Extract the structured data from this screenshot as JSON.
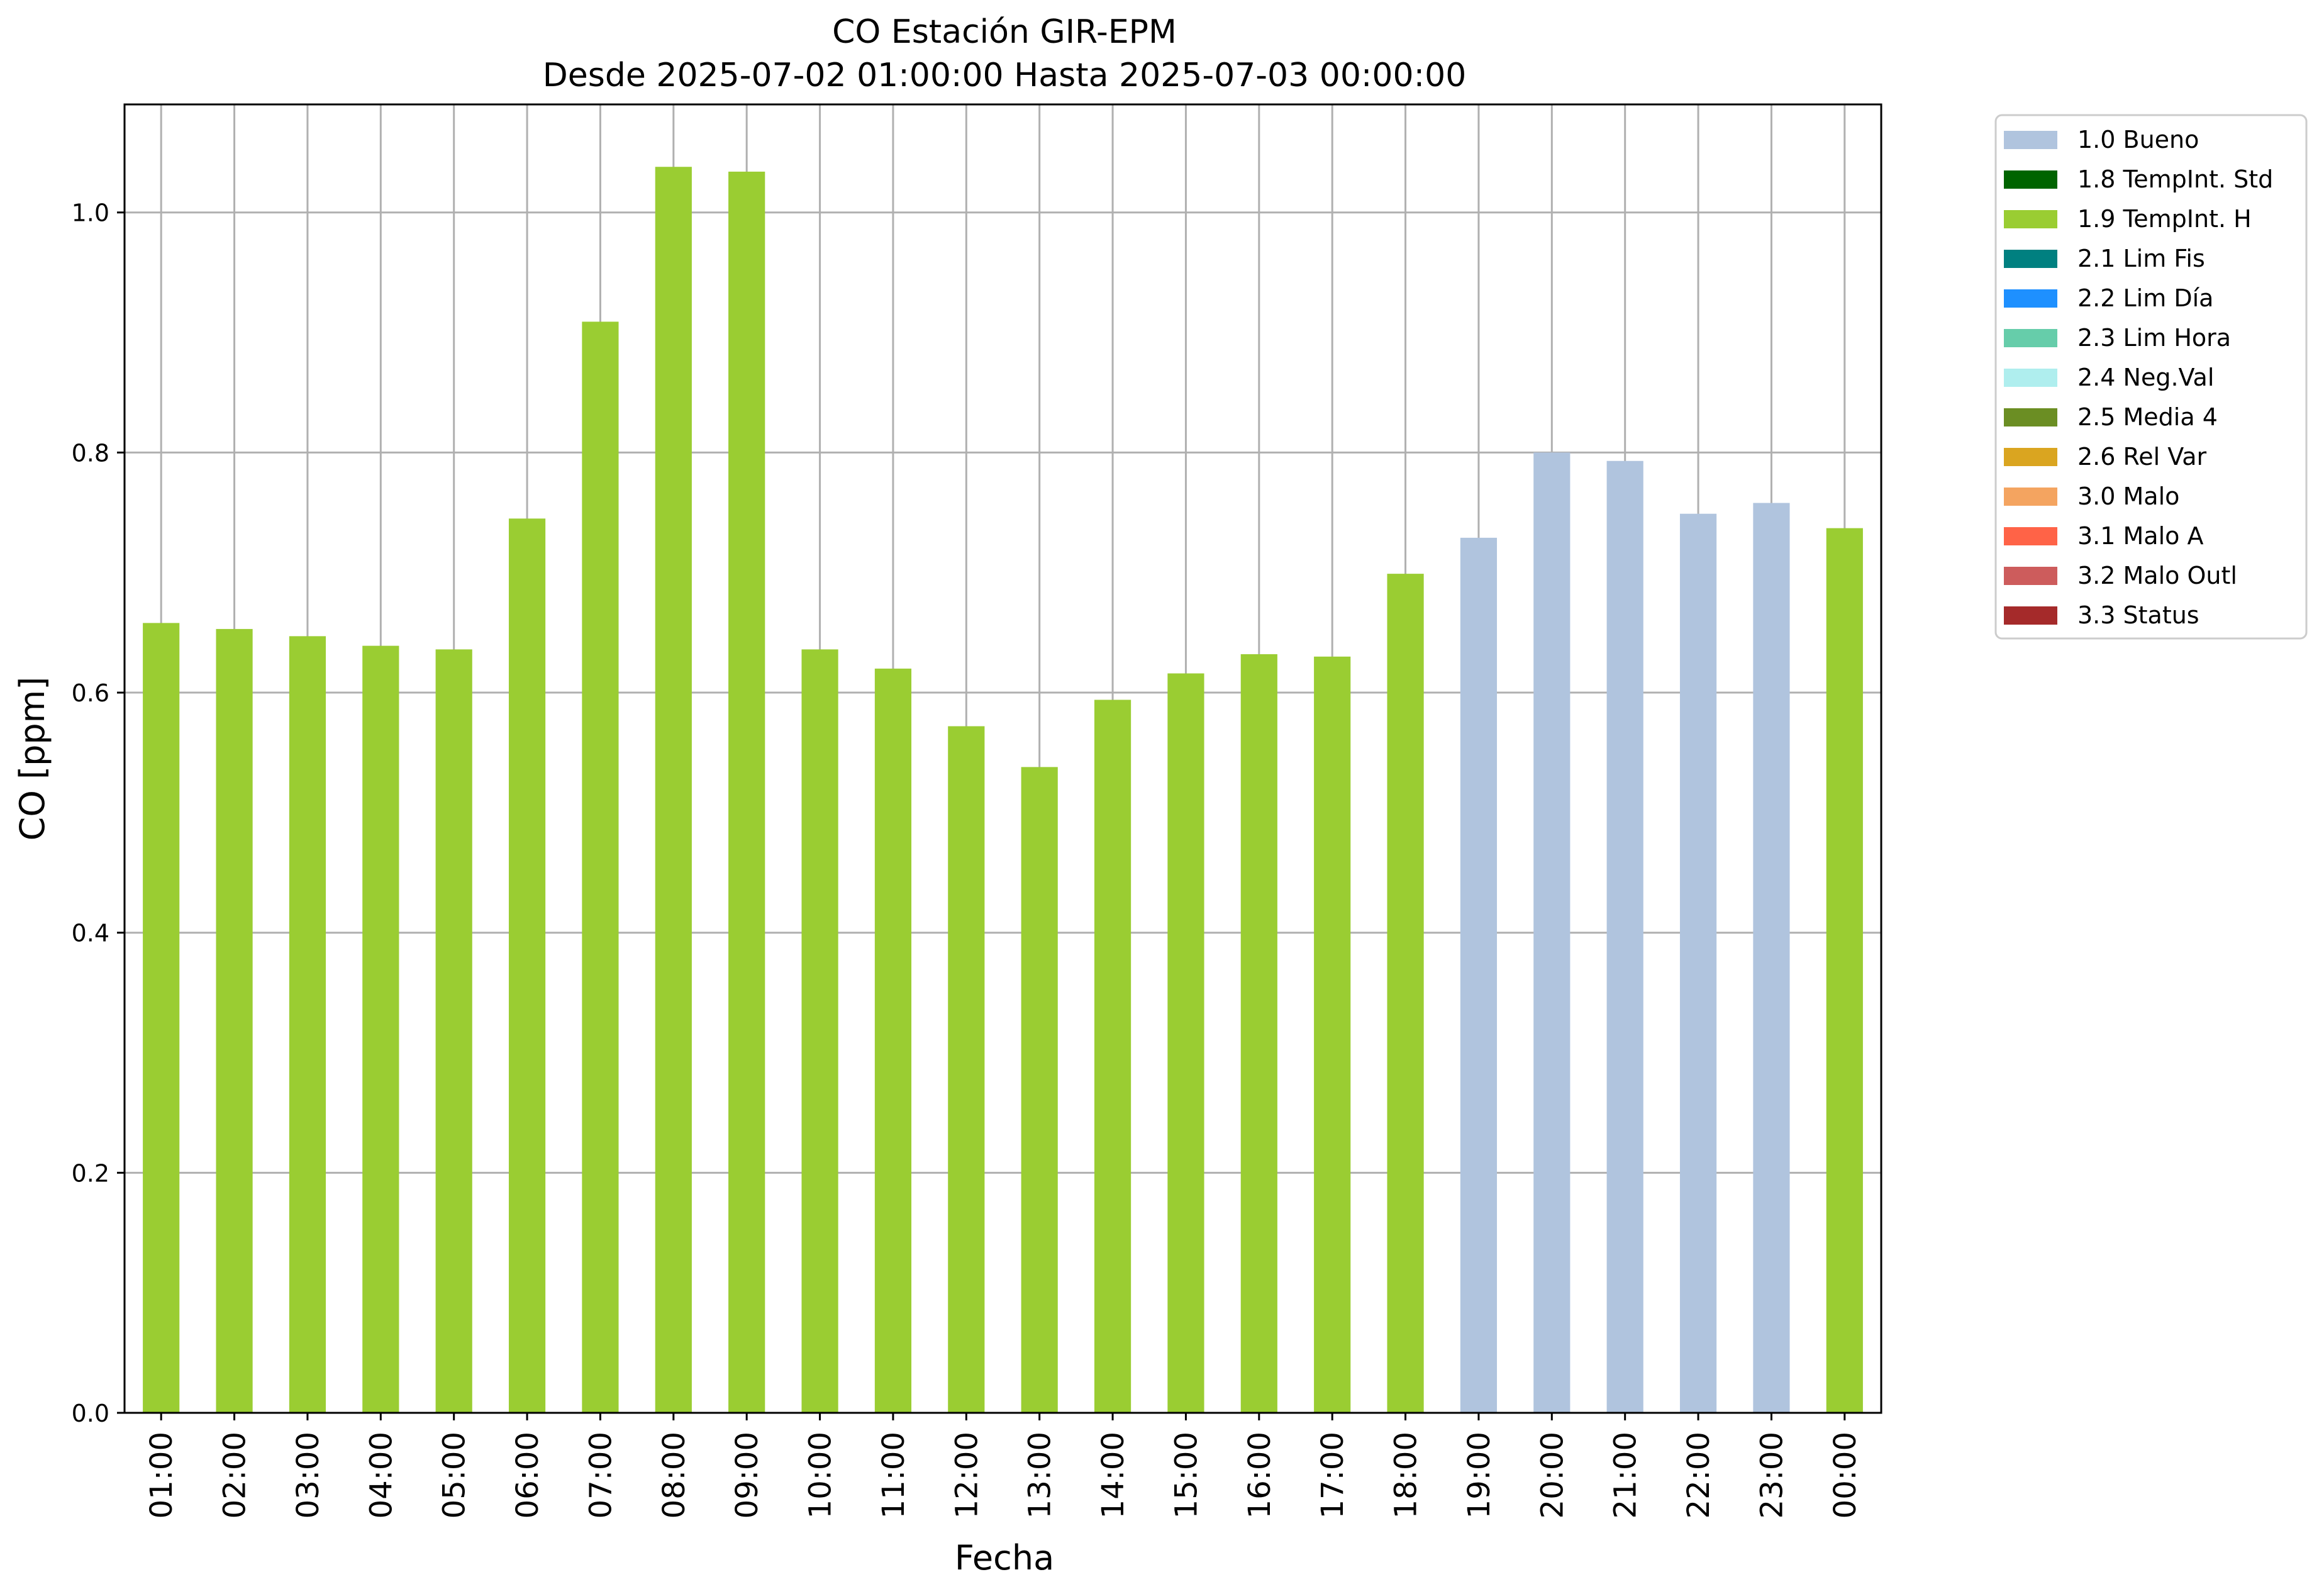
{
  "chart_data": {
    "type": "bar",
    "title": "CO Estación GIR-EPM",
    "subtitle": "Desde 2025-07-02 01:00:00 Hasta 2025-07-03 00:00:00",
    "xlabel": "Fecha",
    "ylabel": "CO [ppm]",
    "ylim": [
      0.0,
      1.09
    ],
    "yticks": [
      "0.0",
      "0.2",
      "0.4",
      "0.6",
      "0.8",
      "1.0"
    ],
    "grid": true,
    "legend_position": "outside-top-right",
    "categories": [
      "01:00",
      "02:00",
      "03:00",
      "04:00",
      "05:00",
      "06:00",
      "07:00",
      "08:00",
      "09:00",
      "10:00",
      "11:00",
      "12:00",
      "13:00",
      "14:00",
      "15:00",
      "16:00",
      "17:00",
      "18:00",
      "19:00",
      "20:00",
      "21:00",
      "22:00",
      "23:00",
      "00:00"
    ],
    "values": [
      0.658,
      0.653,
      0.647,
      0.639,
      0.636,
      0.745,
      0.909,
      1.038,
      1.034,
      0.636,
      0.62,
      0.572,
      0.538,
      0.594,
      0.616,
      0.632,
      0.63,
      0.699,
      0.729,
      0.8,
      0.793,
      0.749,
      0.758,
      0.737
    ],
    "flags": [
      "1.9",
      "1.9",
      "1.9",
      "1.9",
      "1.9",
      "1.9",
      "1.9",
      "1.9",
      "1.9",
      "1.9",
      "1.9",
      "1.9",
      "1.9",
      "1.9",
      "1.9",
      "1.9",
      "1.9",
      "1.9",
      "1.0",
      "1.0",
      "1.0",
      "1.0",
      "1.0",
      "1.9"
    ],
    "legend": [
      {
        "code": "1.0",
        "label": "1.0 Bueno",
        "color": "#b0c4de"
      },
      {
        "code": "1.8",
        "label": "1.8 TempInt. Std",
        "color": "#006400"
      },
      {
        "code": "1.9",
        "label": "1.9 TempInt. H",
        "color": "#9acd32"
      },
      {
        "code": "2.1",
        "label": "2.1 Lim Fis",
        "color": "#008080"
      },
      {
        "code": "2.2",
        "label": "2.2 Lim Día",
        "color": "#1e90ff"
      },
      {
        "code": "2.3",
        "label": "2.3 Lim Hora",
        "color": "#66cdaa"
      },
      {
        "code": "2.4",
        "label": "2.4 Neg.Val",
        "color": "#afeeee"
      },
      {
        "code": "2.5",
        "label": "2.5 Media 4",
        "color": "#6b8e23"
      },
      {
        "code": "2.6",
        "label": "2.6 Rel Var",
        "color": "#daa520"
      },
      {
        "code": "3.0",
        "label": "3.0 Malo",
        "color": "#f4a460"
      },
      {
        "code": "3.1",
        "label": "3.1 Malo A",
        "color": "#ff6347"
      },
      {
        "code": "3.2",
        "label": "3.2 Malo Outl",
        "color": "#cd5c5c"
      },
      {
        "code": "3.3",
        "label": "3.3 Status",
        "color": "#a52a2a"
      }
    ]
  }
}
